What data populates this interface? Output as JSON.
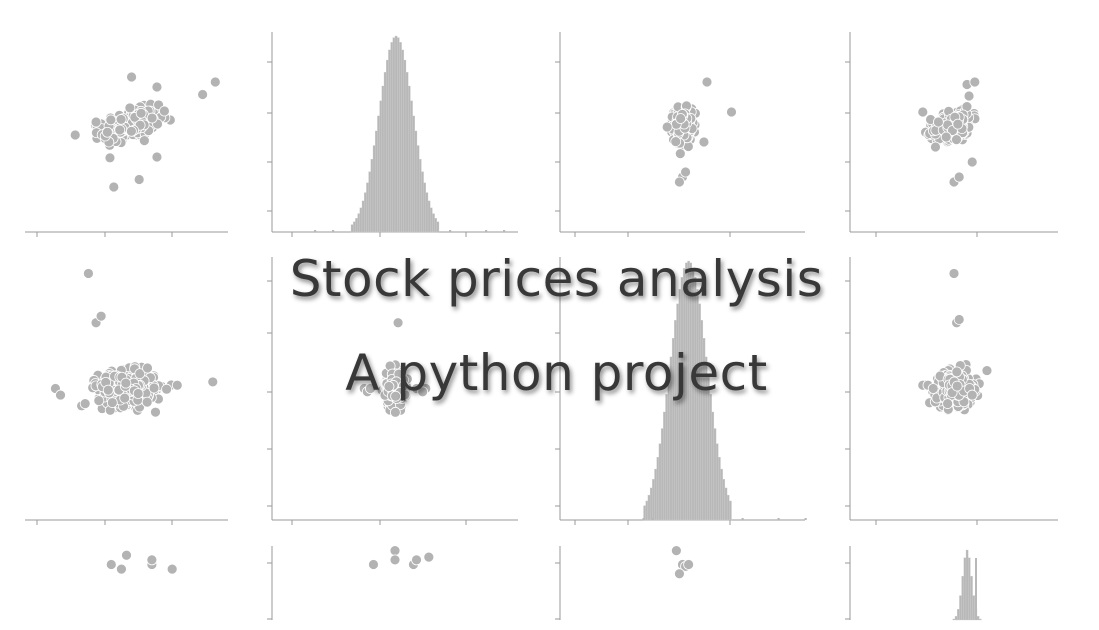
{
  "header": {
    "title": "Stock prices analysis",
    "subtitle": "A python project"
  },
  "colors": {
    "marker": "#b3b3b3",
    "marker_edge": "#ffffff",
    "bar": "#b8b8b8",
    "axis": "#9a9a9a",
    "title_text": "#383838"
  },
  "chart_data": {
    "type": "scatter",
    "layout": "pairplot",
    "grid": false,
    "tick_labels_visible": false,
    "panels": [
      {
        "row": 0,
        "col": 0,
        "type": "scatter",
        "center": [
          0.02,
          0.03
        ],
        "spread": [
          0.055,
          0.03
        ],
        "n": 400,
        "corr": 0.45,
        "outliers": [
          [
            0.35,
            0.2
          ],
          [
            0.3,
            0.15
          ],
          [
            0.12,
            0.18
          ],
          [
            0.12,
            -0.1
          ],
          [
            -0.05,
            -0.22
          ],
          [
            0.05,
            -0.19
          ],
          [
            0.02,
            0.22
          ],
          [
            -0.12,
            0.04
          ]
        ]
      },
      {
        "row": 0,
        "col": 1,
        "type": "histogram",
        "center": 0.0,
        "spread": 0.012,
        "outliers": [
          -0.09,
          -0.07,
          0.06,
          0.1,
          0.12
        ]
      },
      {
        "row": 0,
        "col": 2,
        "type": "scatter",
        "center": [
          0.0,
          0.03
        ],
        "spread": [
          0.014,
          0.03
        ],
        "n": 400,
        "corr": 0.05,
        "outliers": [
          [
            0.08,
            0.2
          ],
          [
            0.16,
            0.08
          ],
          [
            0.07,
            -0.04
          ],
          [
            0.0,
            -0.18
          ],
          [
            -0.01,
            -0.2
          ],
          [
            0.01,
            -0.16
          ],
          [
            -0.05,
            0.02
          ]
        ]
      },
      {
        "row": 0,
        "col": 3,
        "type": "scatter",
        "center": [
          0.0,
          0.03
        ],
        "spread": [
          0.035,
          0.03
        ],
        "n": 400,
        "corr": 0.4,
        "outliers": [
          [
            -0.12,
            0.08
          ],
          [
            -0.09,
            0.05
          ],
          [
            -0.06,
            0.04
          ],
          [
            -0.03,
            -0.02
          ],
          [
            0.0,
            -0.2
          ],
          [
            0.02,
            -0.18
          ],
          [
            0.05,
            0.19
          ],
          [
            0.07,
            -0.12
          ],
          [
            0.08,
            0.2
          ]
        ]
      },
      {
        "row": 1,
        "col": 0,
        "type": "scatter",
        "center": [
          0.0,
          0.0
        ],
        "spread": [
          0.055,
          0.025
        ],
        "n": 400,
        "corr": 0.0,
        "outliers": [
          [
            0.34,
            0.02
          ],
          [
            -0.12,
            0.2
          ],
          [
            -0.1,
            0.22
          ],
          [
            -0.15,
            0.35
          ],
          [
            0.2,
            0.01
          ],
          [
            -0.28,
            0.0
          ],
          [
            -0.26,
            -0.02
          ]
        ]
      },
      {
        "row": 1,
        "col": 1,
        "type": "scatter",
        "center": [
          0.0,
          0.0
        ],
        "spread": [
          0.014,
          0.025
        ],
        "n": 400,
        "corr": 0.0,
        "outliers": [
          [
            -0.1,
            0.0
          ],
          [
            -0.09,
            -0.01
          ],
          [
            -0.08,
            0.0
          ],
          [
            0.07,
            0.0
          ],
          [
            0.1,
            0.0
          ],
          [
            0.09,
            -0.01
          ],
          [
            0.01,
            0.2
          ]
        ]
      },
      {
        "row": 1,
        "col": 2,
        "type": "histogram",
        "center": 0.0,
        "spread": 0.013,
        "outliers": [
          -0.05,
          -0.04,
          0.06,
          0.1,
          0.13
        ]
      },
      {
        "row": 1,
        "col": 3,
        "type": "scatter",
        "center": [
          0.0,
          0.0
        ],
        "spread": [
          0.035,
          0.025
        ],
        "n": 400,
        "corr": 0.0,
        "outliers": [
          [
            -0.12,
            0.01
          ],
          [
            -0.1,
            0.01
          ],
          [
            -0.08,
            0.0
          ],
          [
            0.0,
            0.35
          ],
          [
            0.01,
            0.2
          ],
          [
            0.02,
            0.21
          ],
          [
            0.06,
            0.0
          ],
          [
            0.07,
            -0.02
          ]
        ]
      },
      {
        "row": 2,
        "col": 0,
        "type": "scatter",
        "center": [
          0.0,
          0.0
        ],
        "spread": [
          0.0,
          0.0
        ],
        "n": 0,
        "corr": 0.0,
        "outliers": [
          [
            0.0,
            0.7
          ],
          [
            0.1,
            0.65
          ],
          [
            -0.06,
            0.2
          ],
          [
            -0.02,
            0.15
          ],
          [
            0.1,
            0.2
          ],
          [
            0.1,
            0.25
          ],
          [
            0.18,
            0.15
          ],
          [
            0.0,
            0.3
          ]
        ]
      },
      {
        "row": 2,
        "col": 1,
        "type": "scatter",
        "center": [
          0.0,
          0.0
        ],
        "spread": [
          0.0,
          0.0
        ],
        "n": 0,
        "corr": 0.0,
        "outliers": [
          [
            -0.07,
            0.2
          ],
          [
            0.0,
            0.35
          ],
          [
            0.0,
            0.25
          ],
          [
            0.06,
            0.2
          ],
          [
            0.07,
            0.25
          ],
          [
            0.05,
            0.65
          ],
          [
            0.11,
            0.28
          ],
          [
            0.12,
            0.72
          ]
        ]
      },
      {
        "row": 2,
        "col": 2,
        "type": "scatter",
        "center": [
          0.0,
          0.0
        ],
        "spread": [
          0.0,
          0.0
        ],
        "n": 0,
        "corr": 0.0,
        "outliers": [
          [
            0.0,
            0.7
          ],
          [
            0.01,
            0.68
          ],
          [
            -0.02,
            0.35
          ],
          [
            0.0,
            0.2
          ],
          [
            0.01,
            0.18
          ],
          [
            0.02,
            0.2
          ],
          [
            -0.01,
            0.1
          ]
        ]
      },
      {
        "row": 2,
        "col": 3,
        "type": "histogram",
        "center": 0.0,
        "spread": 0.0005,
        "outliers": []
      }
    ]
  }
}
